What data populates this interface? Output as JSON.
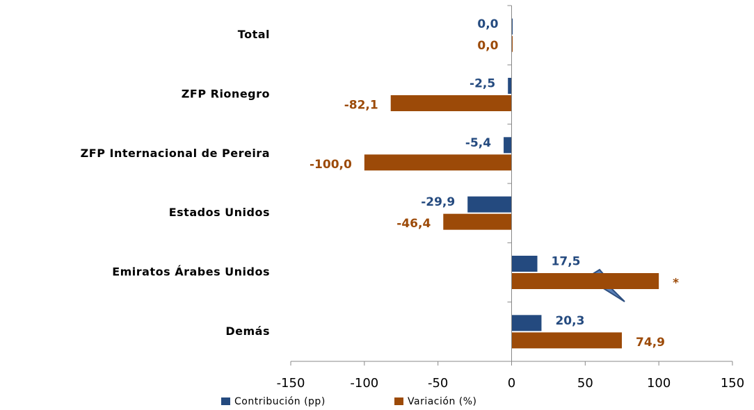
{
  "chart_data": {
    "type": "bar",
    "orientation": "horizontal",
    "categories": [
      "Total",
      "ZFP Rionegro",
      "ZFP Internacional de Pereira",
      "Estados Unidos",
      "Emiratos Árabes Unidos",
      "Demás"
    ],
    "series": [
      {
        "name": "Contribución (pp)",
        "color": "#244a7f",
        "values": [
          0.0,
          -2.5,
          -5.4,
          -29.9,
          17.5,
          20.3
        ],
        "value_labels": [
          "0,0",
          "-2,5",
          "-5,4",
          "-29,9",
          "17,5",
          "20,3"
        ]
      },
      {
        "name": "Variación (%)",
        "color": "#9c4a08",
        "values": [
          0.0,
          -82.1,
          -100.0,
          -46.4,
          100,
          74.9
        ],
        "value_labels": [
          "0,0",
          "-82,1",
          "-100,0",
          "-46,4",
          "*",
          "74,9"
        ]
      }
    ],
    "xlim": [
      -150,
      150
    ],
    "xticks": [
      -150,
      -100,
      -50,
      0,
      50,
      100,
      150
    ],
    "legend": "bottom"
  }
}
